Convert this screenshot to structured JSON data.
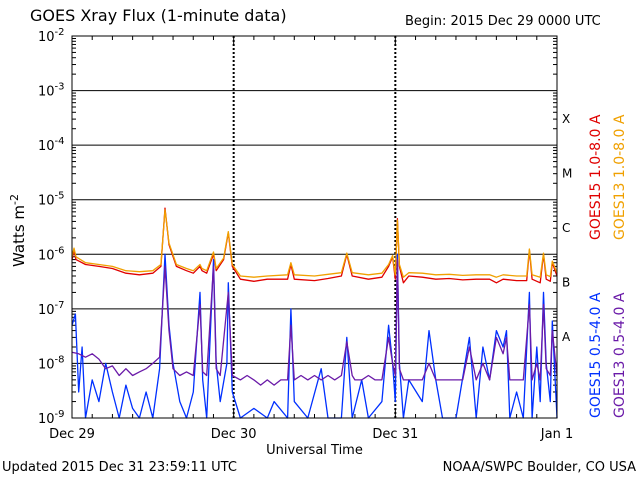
{
  "header": {
    "title": "GOES Xray Flux (1-minute data)",
    "begin": "Begin:  2015 Dec 29 0000 UTC"
  },
  "footer": {
    "updated": "Updated 2015 Dec 31 23:59:11 UTC",
    "credit": "NOAA/SWPC Boulder, CO USA"
  },
  "chart_data": {
    "type": "line",
    "title": "GOES Xray Flux (1-minute data)",
    "xlabel": "Universal Time",
    "ylabel": "Watts m-2",
    "ylog": true,
    "ylim": [
      1e-09,
      0.01
    ],
    "xlim": [
      0,
      72
    ],
    "x_unit": "hours since 2015 Dec 29 0000 UTC",
    "x_ticks": [
      {
        "x": 0,
        "label": "Dec 29"
      },
      {
        "x": 24,
        "label": "Dec 30"
      },
      {
        "x": 48,
        "label": "Dec 31"
      },
      {
        "x": 72,
        "label": "Jan 1"
      }
    ],
    "y_ticks": [
      {
        "exp": -9,
        "label": "10",
        "sup": "-9"
      },
      {
        "exp": -8,
        "label": "10",
        "sup": "-8"
      },
      {
        "exp": -7,
        "label": "10",
        "sup": "-7"
      },
      {
        "exp": -6,
        "label": "10",
        "sup": "-6"
      },
      {
        "exp": -5,
        "label": "10",
        "sup": "-5"
      },
      {
        "exp": -4,
        "label": "10",
        "sup": "-4"
      },
      {
        "exp": -3,
        "label": "10",
        "sup": "-3"
      },
      {
        "exp": -2,
        "label": "10",
        "sup": "-2"
      }
    ],
    "flare_classes": [
      {
        "label": "A",
        "exp": -7.5
      },
      {
        "label": "B",
        "exp": -6.5
      },
      {
        "label": "C",
        "exp": -5.5
      },
      {
        "label": "M",
        "exp": -4.5
      },
      {
        "label": "X",
        "exp": -3.5
      }
    ],
    "grid": true,
    "series": [
      {
        "name": "GOES15 1.0-8.0 A",
        "color": "#e00000",
        "points": [
          [
            0,
            8e-07
          ],
          [
            0.3,
            1.2e-06
          ],
          [
            0.6,
            8e-07
          ],
          [
            2,
            6.5e-07
          ],
          [
            4,
            6e-07
          ],
          [
            6,
            5.5e-07
          ],
          [
            8,
            4.5e-07
          ],
          [
            10,
            4.2e-07
          ],
          [
            12,
            4.5e-07
          ],
          [
            13.2,
            6e-07
          ],
          [
            13.8,
            7e-06
          ],
          [
            14.4,
            1.5e-06
          ],
          [
            15.5,
            6e-07
          ],
          [
            17,
            5e-07
          ],
          [
            18,
            4.5e-07
          ],
          [
            19,
            6e-07
          ],
          [
            19.3,
            5e-07
          ],
          [
            20,
            4.5e-07
          ],
          [
            21,
            1e-06
          ],
          [
            21.4,
            5e-07
          ],
          [
            22.5,
            8e-07
          ],
          [
            23.2,
            2.5e-06
          ],
          [
            23.8,
            6e-07
          ],
          [
            25,
            3.5e-07
          ],
          [
            27,
            3.2e-07
          ],
          [
            29,
            3.5e-07
          ],
          [
            32,
            3.5e-07
          ],
          [
            32.5,
            6.5e-07
          ],
          [
            33,
            3.5e-07
          ],
          [
            36,
            3.3e-07
          ],
          [
            38,
            3.6e-07
          ],
          [
            40,
            4e-07
          ],
          [
            40.8,
            1e-06
          ],
          [
            41.6,
            4e-07
          ],
          [
            44,
            3.5e-07
          ],
          [
            46,
            3.8e-07
          ],
          [
            47,
            6e-07
          ],
          [
            47.6,
            9e-07
          ],
          [
            48,
            3.5e-07
          ],
          [
            48.3,
            4.5e-06
          ],
          [
            48.6,
            6e-07
          ],
          [
            49.2,
            3e-07
          ],
          [
            50,
            4e-07
          ],
          [
            52,
            3.8e-07
          ],
          [
            54,
            3.5e-07
          ],
          [
            56,
            3.6e-07
          ],
          [
            58,
            3.4e-07
          ],
          [
            60,
            3.5e-07
          ],
          [
            62,
            3.5e-07
          ],
          [
            63,
            3e-07
          ],
          [
            64,
            3.5e-07
          ],
          [
            66,
            3.3e-07
          ],
          [
            67.5,
            3.3e-07
          ],
          [
            67.9,
            1.2e-06
          ],
          [
            68.3,
            3.5e-07
          ],
          [
            69.5,
            3e-07
          ],
          [
            70,
            1e-06
          ],
          [
            70.4,
            3.5e-07
          ],
          [
            71,
            3.2e-07
          ],
          [
            71.3,
            7e-07
          ],
          [
            72,
            4e-07
          ]
        ]
      },
      {
        "name": "GOES13 1.0-8.0 A",
        "color": "#f0a000",
        "points": [
          [
            0,
            9e-07
          ],
          [
            0.3,
            1.3e-06
          ],
          [
            0.6,
            9e-07
          ],
          [
            2,
            7e-07
          ],
          [
            4,
            6.5e-07
          ],
          [
            6,
            6e-07
          ],
          [
            8,
            5e-07
          ],
          [
            10,
            4.8e-07
          ],
          [
            12,
            5e-07
          ],
          [
            13.2,
            6.5e-07
          ],
          [
            13.8,
            6.5e-06
          ],
          [
            14.4,
            1.6e-06
          ],
          [
            15.5,
            6.5e-07
          ],
          [
            17,
            5.5e-07
          ],
          [
            18,
            5e-07
          ],
          [
            19,
            6.5e-07
          ],
          [
            19.3,
            5.5e-07
          ],
          [
            20,
            5e-07
          ],
          [
            21,
            1.1e-06
          ],
          [
            21.4,
            5.5e-07
          ],
          [
            22.5,
            8.5e-07
          ],
          [
            23.2,
            2.6e-06
          ],
          [
            23.8,
            6.5e-07
          ],
          [
            25,
            4e-07
          ],
          [
            27,
            3.8e-07
          ],
          [
            29,
            4e-07
          ],
          [
            32,
            4.2e-07
          ],
          [
            32.5,
            7e-07
          ],
          [
            33,
            4.2e-07
          ],
          [
            36,
            4e-07
          ],
          [
            38,
            4.3e-07
          ],
          [
            40,
            4.6e-07
          ],
          [
            40.8,
            1.05e-06
          ],
          [
            41.6,
            4.6e-07
          ],
          [
            44,
            4.2e-07
          ],
          [
            46,
            4.5e-07
          ],
          [
            47,
            6.5e-07
          ],
          [
            47.6,
            9.5e-07
          ],
          [
            48,
            4.2e-07
          ],
          [
            48.3,
            4.2e-06
          ],
          [
            48.6,
            6.5e-07
          ],
          [
            49.2,
            3.8e-07
          ],
          [
            50,
            4.6e-07
          ],
          [
            52,
            4.5e-07
          ],
          [
            54,
            4.2e-07
          ],
          [
            56,
            4.3e-07
          ],
          [
            58,
            4.1e-07
          ],
          [
            60,
            4.2e-07
          ],
          [
            62,
            4.2e-07
          ],
          [
            63,
            3.8e-07
          ],
          [
            64,
            4.2e-07
          ],
          [
            66,
            4e-07
          ],
          [
            67.5,
            4e-07
          ],
          [
            67.9,
            1.25e-06
          ],
          [
            68.3,
            4.2e-07
          ],
          [
            69.5,
            3.8e-07
          ],
          [
            70,
            1.05e-06
          ],
          [
            70.4,
            4.2e-07
          ],
          [
            71,
            3.9e-07
          ],
          [
            71.3,
            7.5e-07
          ],
          [
            72,
            4.6e-07
          ]
        ]
      },
      {
        "name": "GOES15 0.5-4.0 A",
        "color": "#0030ff",
        "points": [
          [
            0,
            5e-08
          ],
          [
            0.5,
            8e-08
          ],
          [
            1,
            3e-09
          ],
          [
            1.5,
            2e-08
          ],
          [
            2,
            1e-09
          ],
          [
            3,
            5e-09
          ],
          [
            4,
            2e-09
          ],
          [
            5,
            1e-08
          ],
          [
            6,
            3e-09
          ],
          [
            7,
            1e-09
          ],
          [
            8,
            4e-09
          ],
          [
            9,
            1.5e-09
          ],
          [
            10,
            1e-09
          ],
          [
            11,
            3e-09
          ],
          [
            12,
            1e-09
          ],
          [
            13,
            8e-09
          ],
          [
            13.8,
            1e-06
          ],
          [
            14.4,
            5e-08
          ],
          [
            15,
            1e-08
          ],
          [
            16,
            2e-09
          ],
          [
            17,
            1e-09
          ],
          [
            18,
            3e-09
          ],
          [
            19,
            2e-07
          ],
          [
            19.4,
            5e-09
          ],
          [
            20,
            1e-09
          ],
          [
            21,
            8e-07
          ],
          [
            21.4,
            1e-08
          ],
          [
            22,
            2e-09
          ],
          [
            23,
            1e-08
          ],
          [
            23.2,
            3e-07
          ],
          [
            23.8,
            3e-09
          ],
          [
            25,
            1e-09
          ],
          [
            27,
            1.5e-09
          ],
          [
            29,
            1e-09
          ],
          [
            30,
            2e-09
          ],
          [
            32,
            1e-09
          ],
          [
            32.5,
            1e-07
          ],
          [
            33,
            2e-09
          ],
          [
            35,
            1e-09
          ],
          [
            37,
            8e-09
          ],
          [
            38,
            1e-09
          ],
          [
            40,
            1e-09
          ],
          [
            40.8,
            3e-08
          ],
          [
            41.6,
            1e-09
          ],
          [
            43,
            5e-09
          ],
          [
            44,
            1e-09
          ],
          [
            46,
            2e-09
          ],
          [
            47,
            5e-08
          ],
          [
            47.6,
            1e-08
          ],
          [
            48,
            2e-09
          ],
          [
            48.3,
            1e-06
          ],
          [
            48.6,
            1e-08
          ],
          [
            49.2,
            1e-09
          ],
          [
            50,
            5e-09
          ],
          [
            52,
            2e-09
          ],
          [
            53,
            4e-08
          ],
          [
            54,
            5e-09
          ],
          [
            55,
            1e-09
          ],
          [
            57,
            1e-09
          ],
          [
            59,
            3e-08
          ],
          [
            60,
            1e-09
          ],
          [
            61,
            2e-08
          ],
          [
            62,
            5e-09
          ],
          [
            63,
            4e-08
          ],
          [
            64,
            2e-08
          ],
          [
            64.5,
            4e-08
          ],
          [
            65,
            1e-09
          ],
          [
            66,
            3e-09
          ],
          [
            67,
            1e-09
          ],
          [
            67.9,
            2e-07
          ],
          [
            68.3,
            1e-09
          ],
          [
            69,
            2e-08
          ],
          [
            69.5,
            2e-09
          ],
          [
            70,
            2e-07
          ],
          [
            70.4,
            1e-08
          ],
          [
            71,
            2e-09
          ],
          [
            71.3,
            6e-08
          ],
          [
            72,
            1e-09
          ]
        ]
      },
      {
        "name": "GOES13 0.5-4.0 A",
        "color": "#6a1aa8",
        "points": [
          [
            0,
            1.6e-08
          ],
          [
            1,
            1.5e-08
          ],
          [
            2,
            1.3e-08
          ],
          [
            3,
            1.5e-08
          ],
          [
            4,
            1.2e-08
          ],
          [
            5,
            8e-09
          ],
          [
            6,
            9e-09
          ],
          [
            7,
            6e-09
          ],
          [
            8,
            8e-09
          ],
          [
            9,
            6e-09
          ],
          [
            10,
            7e-09
          ],
          [
            11,
            8e-09
          ],
          [
            12,
            1e-08
          ],
          [
            13,
            1.3e-08
          ],
          [
            13.8,
            6e-07
          ],
          [
            14.4,
            4e-08
          ],
          [
            15,
            8e-09
          ],
          [
            16,
            6e-09
          ],
          [
            17,
            7e-09
          ],
          [
            18,
            6e-09
          ],
          [
            19,
            1.2e-07
          ],
          [
            19.4,
            7e-09
          ],
          [
            20,
            6e-09
          ],
          [
            21,
            6e-07
          ],
          [
            21.4,
            8e-09
          ],
          [
            22,
            6e-09
          ],
          [
            23.2,
            2e-07
          ],
          [
            23.8,
            6e-09
          ],
          [
            25,
            5e-09
          ],
          [
            26,
            6e-09
          ],
          [
            27,
            5e-09
          ],
          [
            28,
            4e-09
          ],
          [
            29,
            5e-09
          ],
          [
            30,
            4e-09
          ],
          [
            31,
            5e-09
          ],
          [
            32,
            5e-09
          ],
          [
            32.5,
            5e-08
          ],
          [
            33,
            5e-09
          ],
          [
            34,
            6e-09
          ],
          [
            35,
            5e-09
          ],
          [
            36,
            6e-09
          ],
          [
            37,
            5e-09
          ],
          [
            38,
            6e-09
          ],
          [
            39,
            5e-09
          ],
          [
            40,
            6e-09
          ],
          [
            40.8,
            2.5e-08
          ],
          [
            41.6,
            6e-09
          ],
          [
            42,
            5e-09
          ],
          [
            43,
            5e-09
          ],
          [
            44,
            6e-09
          ],
          [
            45,
            5e-09
          ],
          [
            46,
            5e-09
          ],
          [
            47,
            3e-08
          ],
          [
            47.6,
            1e-08
          ],
          [
            48,
            6e-09
          ],
          [
            48.3,
            8e-07
          ],
          [
            48.6,
            8e-09
          ],
          [
            49.2,
            5e-09
          ],
          [
            50,
            5e-09
          ],
          [
            52,
            5e-09
          ],
          [
            53,
            1e-08
          ],
          [
            54,
            5e-09
          ],
          [
            56,
            5e-09
          ],
          [
            58,
            5e-09
          ],
          [
            59,
            2e-08
          ],
          [
            60,
            5e-09
          ],
          [
            61,
            1e-08
          ],
          [
            62,
            5e-09
          ],
          [
            63,
            3e-08
          ],
          [
            64,
            1.5e-08
          ],
          [
            64.5,
            3e-08
          ],
          [
            65,
            5e-09
          ],
          [
            66,
            5e-09
          ],
          [
            67,
            5e-09
          ],
          [
            67.9,
            1.2e-07
          ],
          [
            68.3,
            5e-09
          ],
          [
            69,
            1e-08
          ],
          [
            69.5,
            5e-09
          ],
          [
            70,
            1.2e-07
          ],
          [
            70.4,
            8e-09
          ],
          [
            71,
            6e-09
          ],
          [
            71.3,
            4e-08
          ],
          [
            72,
            6e-09
          ]
        ]
      }
    ]
  }
}
